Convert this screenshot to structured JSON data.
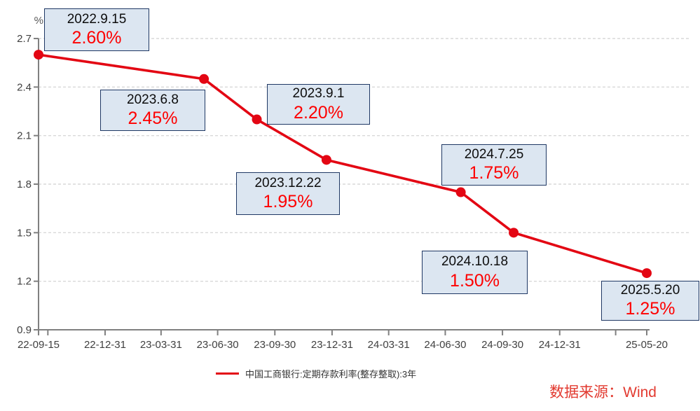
{
  "colors": {
    "line_red": "#e30613",
    "marker_red": "#e30613",
    "value_red": "#fe0000",
    "source_red": "#e23a30",
    "box_fill": "#dce6f1",
    "box_border": "#1f3864",
    "grid_gray": "#d9d9d9",
    "axis_gray": "#808080",
    "tick_text": "#404040",
    "date_text": "#0d0d0d"
  },
  "chart_data": {
    "type": "line",
    "title": "",
    "xlabel": "",
    "ylabel": "%",
    "ylim": [
      0.9,
      2.7
    ],
    "grid": "horizontal dashed",
    "legend_position": "bottom-center",
    "series": [
      {
        "name": "中国工商银行:定期存款利率(整存整取):3年",
        "color": "#e30613",
        "x": [
          "2022-09-15",
          "2023-06-08",
          "2023-09-01",
          "2023-12-22",
          "2024-07-25",
          "2024-10-18",
          "2025-05-20"
        ],
        "values": [
          2.6,
          2.45,
          2.2,
          1.95,
          1.75,
          1.5,
          1.25
        ]
      }
    ],
    "annotations": [
      {
        "date_label": "2022.9.15",
        "value_label": "2.60%"
      },
      {
        "date_label": "2023.6.8",
        "value_label": "2.45%"
      },
      {
        "date_label": "2023.9.1",
        "value_label": "2.20%"
      },
      {
        "date_label": "2023.12.22",
        "value_label": "1.95%"
      },
      {
        "date_label": "2024.7.25",
        "value_label": "1.75%"
      },
      {
        "date_label": "2024.10.18",
        "value_label": "1.50%"
      },
      {
        "date_label": "2025.5.20",
        "value_label": "1.25%"
      }
    ],
    "y_ticks": [
      "2.7",
      "2.4",
      "2.1",
      "1.8",
      "1.5",
      "1.2",
      "0.9"
    ],
    "x_ticks": [
      {
        "date": "2022-09-15",
        "label": "22-09-15"
      },
      {
        "date": "2022-09-30",
        "label": ""
      },
      {
        "date": "2022-12-31",
        "label": "22-12-31"
      },
      {
        "date": "2023-03-31",
        "label": "23-03-31"
      },
      {
        "date": "2023-06-30",
        "label": "23-06-30"
      },
      {
        "date": "2023-09-30",
        "label": "23-09-30"
      },
      {
        "date": "2023-12-31",
        "label": "23-12-31"
      },
      {
        "date": "2024-03-31",
        "label": "24-03-31"
      },
      {
        "date": "2024-06-30",
        "label": "24-06-30"
      },
      {
        "date": "2024-09-30",
        "label": "24-09-30"
      },
      {
        "date": "2024-12-31",
        "label": "24-12-31"
      },
      {
        "date": "2025-03-31",
        "label": ""
      },
      {
        "date": "2025-05-20",
        "label": "25-05-20"
      }
    ],
    "unit_label": "%"
  },
  "legend": {
    "label": "中国工商银行:定期存款利率(整存整取):3年"
  },
  "source": {
    "text": "数据来源：Wind"
  }
}
